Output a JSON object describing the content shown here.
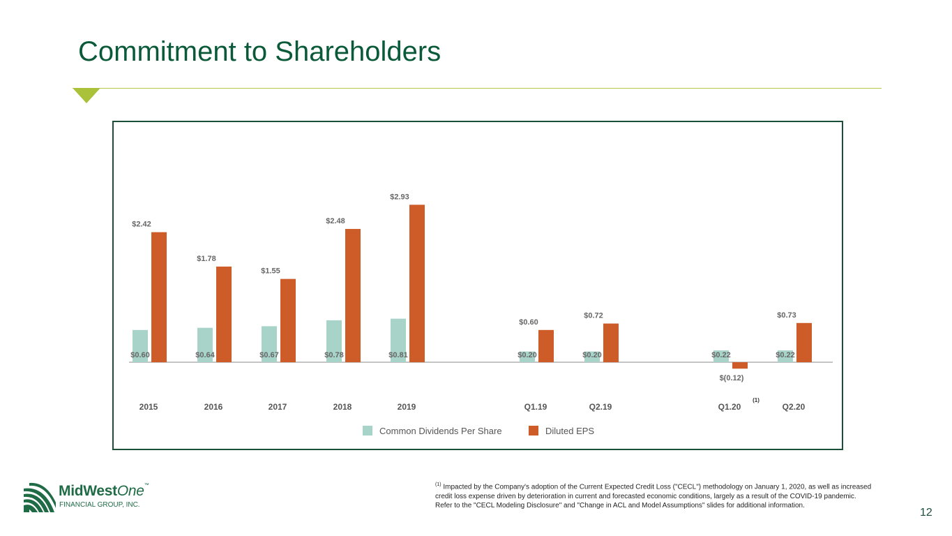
{
  "slide": {
    "title": "Commitment to Shareholders",
    "page_number": "12"
  },
  "logo": {
    "name_part1": "MidWest",
    "name_part2": "One",
    "trademark": "™",
    "subtitle": "FINANCIAL GROUP, INC."
  },
  "footnote": {
    "marker": "(1)",
    "text": "Impacted by the Company's adoption of the Current Expected Credit Loss (\"CECL\") methodology on January 1, 2020, as well as increased credit loss expense driven by deterioration in current and forecasted economic conditions, largely as a result of the COVID-19 pandemic. Refer to the \"CECL Modeling Disclosure\" and \"Change in ACL and Model Assumptions\" slides for additional information."
  },
  "chart_data": {
    "type": "bar",
    "categories": [
      "2015",
      "2016",
      "2017",
      "2018",
      "2019",
      "Q1.19",
      "Q2.19",
      "Q1.20",
      "Q2.20"
    ],
    "category_footnotes": [
      "",
      "",
      "",
      "",
      "",
      "",
      "",
      "(1)",
      ""
    ],
    "series": [
      {
        "name": "Common Dividends Per Share",
        "color": "#a7d3c8",
        "values": [
          0.6,
          0.64,
          0.67,
          0.78,
          0.81,
          0.2,
          0.2,
          0.22,
          0.22
        ],
        "labels": [
          "$0.60",
          "$0.64",
          "$0.67",
          "$0.78",
          "$0.81",
          "$0.20",
          "$0.20",
          "$0.22",
          "$0.22"
        ]
      },
      {
        "name": "Diluted EPS",
        "color": "#cd5c29",
        "values": [
          2.42,
          1.78,
          1.55,
          2.48,
          2.93,
          0.6,
          0.72,
          -0.12,
          0.73
        ],
        "labels": [
          "$2.42",
          "$1.78",
          "$1.55",
          "$2.48",
          "$2.93",
          "$0.60",
          "$0.72",
          "$(0.12)",
          "$0.73"
        ]
      }
    ],
    "legend_position": "bottom",
    "grid": false
  }
}
